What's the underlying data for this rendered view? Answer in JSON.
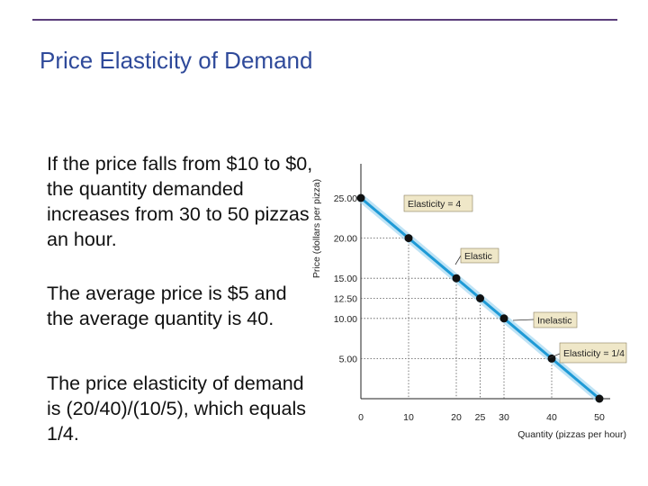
{
  "slide": {
    "title": "Price Elasticity of Demand",
    "paragraphs": [
      "If the price falls from $10 to $0, the quantity demanded increases from 30 to 50 pizzas an hour.",
      "The average price is $5 and the average quantity is 40.",
      "The price elasticity of demand is (20/40)/(10/5), which equals 1/4."
    ]
  },
  "colors": {
    "title": "#2f4a9a",
    "rule": "#5a3d7a",
    "demand_line": "#1e9ad6",
    "demand_glow": "#a9d9f2",
    "callout_fill": "#efe7c8"
  },
  "chart_data": {
    "type": "line",
    "xlabel": "Quantity (pizzas per hour)",
    "ylabel": "Price (dollars per pizza)",
    "xlim": [
      0,
      50
    ],
    "ylim": [
      0,
      27
    ],
    "x_ticks": [
      0,
      10,
      20,
      25,
      30,
      40,
      50
    ],
    "y_ticks": [
      {
        "value": 5,
        "label": "5.00"
      },
      {
        "value": 10,
        "label": "10.00"
      },
      {
        "value": 12.5,
        "label": "12.50"
      },
      {
        "value": 15,
        "label": "15.00"
      },
      {
        "value": 20,
        "label": "20.00"
      },
      {
        "value": 25,
        "label": "25.00"
      }
    ],
    "series": [
      {
        "x": [
          0,
          10,
          20,
          25,
          30,
          40,
          50
        ],
        "y": [
          25,
          20,
          15,
          12.5,
          10,
          5,
          0
        ]
      }
    ],
    "marked_points": [
      {
        "x": 0,
        "y": 25
      },
      {
        "x": 10,
        "y": 20
      },
      {
        "x": 20,
        "y": 15
      },
      {
        "x": 25,
        "y": 12.5
      },
      {
        "x": 30,
        "y": 10
      },
      {
        "x": 40,
        "y": 5
      },
      {
        "x": 50,
        "y": 0
      }
    ],
    "annotations": [
      {
        "text": "Elasticity = 4",
        "x": 5,
        "y": 22.5
      },
      {
        "text": "Elastic",
        "x": 15,
        "y": 17.5
      },
      {
        "text": "Inelastic",
        "x": 35,
        "y": 7.5
      },
      {
        "text": "Elasticity = 1/4",
        "x": 45,
        "y": 2.5
      }
    ],
    "grid": false
  }
}
